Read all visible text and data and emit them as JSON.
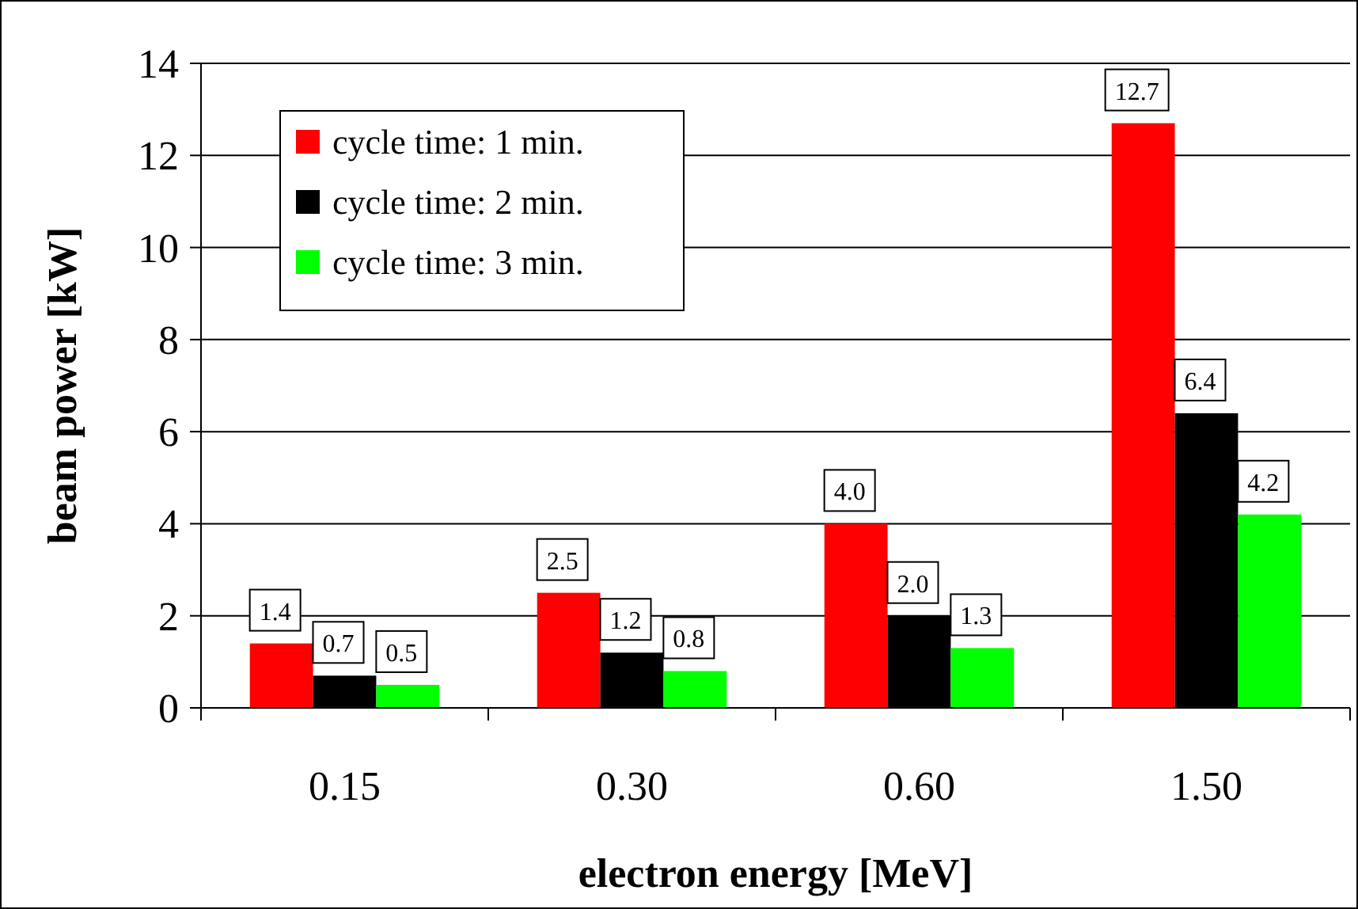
{
  "chart_data": {
    "type": "bar",
    "xlabel": "electron energy [MeV]",
    "ylabel": "beam power [kW]",
    "categories": [
      "0.15",
      "0.30",
      "0.60",
      "1.50"
    ],
    "series": [
      {
        "name": "cycle time: 1 min.",
        "color": "#ff0000",
        "values": [
          1.4,
          2.5,
          4.0,
          12.7
        ],
        "value_labels": [
          "1.4",
          "2.5",
          "4.0",
          "12.7"
        ]
      },
      {
        "name": "cycle time: 2 min.",
        "color": "#000000",
        "values": [
          0.7,
          1.2,
          2.0,
          6.4
        ],
        "value_labels": [
          "0.7",
          "1.2",
          "2.0",
          "6.4"
        ]
      },
      {
        "name": "cycle time: 3 min.",
        "color": "#00ff00",
        "values": [
          0.5,
          0.8,
          1.3,
          4.2
        ],
        "value_labels": [
          "0.5",
          "0.8",
          "1.3",
          "4.2"
        ]
      }
    ],
    "ylim": [
      0,
      14
    ],
    "yticks": [
      0,
      2,
      4,
      6,
      8,
      10,
      12,
      14
    ],
    "grid": "y",
    "legend": "top left"
  }
}
